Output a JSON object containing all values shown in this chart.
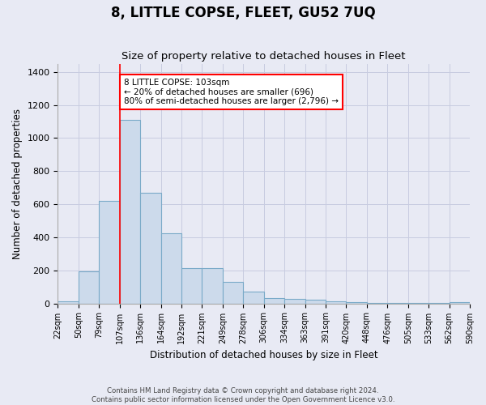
{
  "title": "8, LITTLE COPSE, FLEET, GU52 7UQ",
  "subtitle": "Size of property relative to detached houses in Fleet",
  "xlabel": "Distribution of detached houses by size in Fleet",
  "ylabel": "Number of detached properties",
  "bar_values": [
    15,
    195,
    620,
    1110,
    670,
    425,
    215,
    215,
    130,
    70,
    30,
    25,
    20,
    12,
    8,
    5,
    5,
    5,
    5,
    10
  ],
  "bar_labels": [
    "22sqm",
    "50sqm",
    "79sqm",
    "107sqm",
    "136sqm",
    "164sqm",
    "192sqm",
    "221sqm",
    "249sqm",
    "278sqm",
    "306sqm",
    "334sqm",
    "363sqm",
    "391sqm",
    "420sqm",
    "448sqm",
    "476sqm",
    "505sqm",
    "533sqm",
    "562sqm",
    "590sqm"
  ],
  "bar_color": "#ccdaeb",
  "bar_edge_color": "#7aaac8",
  "bar_edge_width": 0.8,
  "red_line_x": 3.0,
  "annotation_text": "8 LITTLE COPSE: 103sqm\n← 20% of detached houses are smaller (696)\n80% of semi-detached houses are larger (2,796) →",
  "annotation_box_color": "white",
  "annotation_box_edge_color": "red",
  "ylim": [
    0,
    1450
  ],
  "yticks": [
    0,
    200,
    400,
    600,
    800,
    1000,
    1200,
    1400
  ],
  "grid_color": "#c8cce0",
  "background_color": "#e8eaf4",
  "footnote1": "Contains HM Land Registry data © Crown copyright and database right 2024.",
  "footnote2": "Contains public sector information licensed under the Open Government Licence v3.0."
}
